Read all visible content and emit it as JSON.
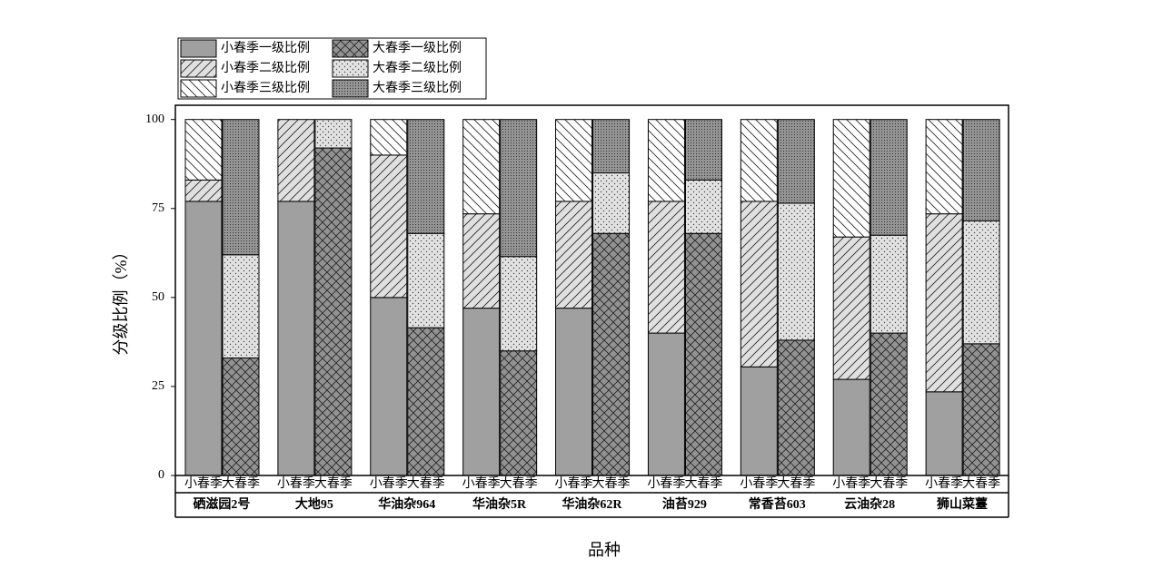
{
  "chart_data": {
    "type": "stacked-bar",
    "x_label": "品种",
    "y_label": "分级比例（%）",
    "categories": [
      "硒滋园2号",
      "大地95",
      "华油杂964",
      "华油杂5R",
      "华油杂62R",
      "油苔929",
      "常香苔603",
      "云油杂28",
      "狮山菜薹"
    ],
    "ylim": [
      0,
      104
    ],
    "yticks": [
      0,
      25,
      50,
      75,
      100
    ],
    "stacks": [
      {
        "label": "小春季",
        "series": [
          {
            "name": "小春季一级比例",
            "color": "#a0a0a0",
            "pattern": "solid",
            "values": [
              77,
              77,
              50,
              47,
              47,
              40,
              30.5,
              27,
              23.5
            ]
          },
          {
            "name": "小春季二级比例",
            "color": "#e0e0e0",
            "pattern": "slash",
            "values": [
              6,
              23,
              40,
              26.5,
              30,
              37,
              46.5,
              40,
              50
            ]
          },
          {
            "name": "小春季三级比例",
            "color": "#ffffff",
            "pattern": "backslash",
            "values": [
              17,
              0,
              10,
              26.5,
              23,
              23,
              23,
              33,
              26.5
            ]
          }
        ]
      },
      {
        "label": "大春季",
        "series": [
          {
            "name": "大春季一级比例",
            "color": "#929292",
            "pattern": "crosshatch",
            "values": [
              33,
              92,
              41.5,
              35,
              68,
              68,
              38,
              40,
              37
            ]
          },
          {
            "name": "大春季二级比例",
            "color": "#e2e2e2",
            "pattern": "dots",
            "values": [
              29,
              8,
              26.5,
              26.5,
              17,
              15,
              38.5,
              27.5,
              34.5
            ]
          },
          {
            "name": "大春季三级比例",
            "color": "#969696",
            "pattern": "densedots",
            "values": [
              38,
              0,
              32,
              38.5,
              15,
              17,
              23.5,
              32.5,
              28.5
            ]
          }
        ]
      }
    ]
  }
}
